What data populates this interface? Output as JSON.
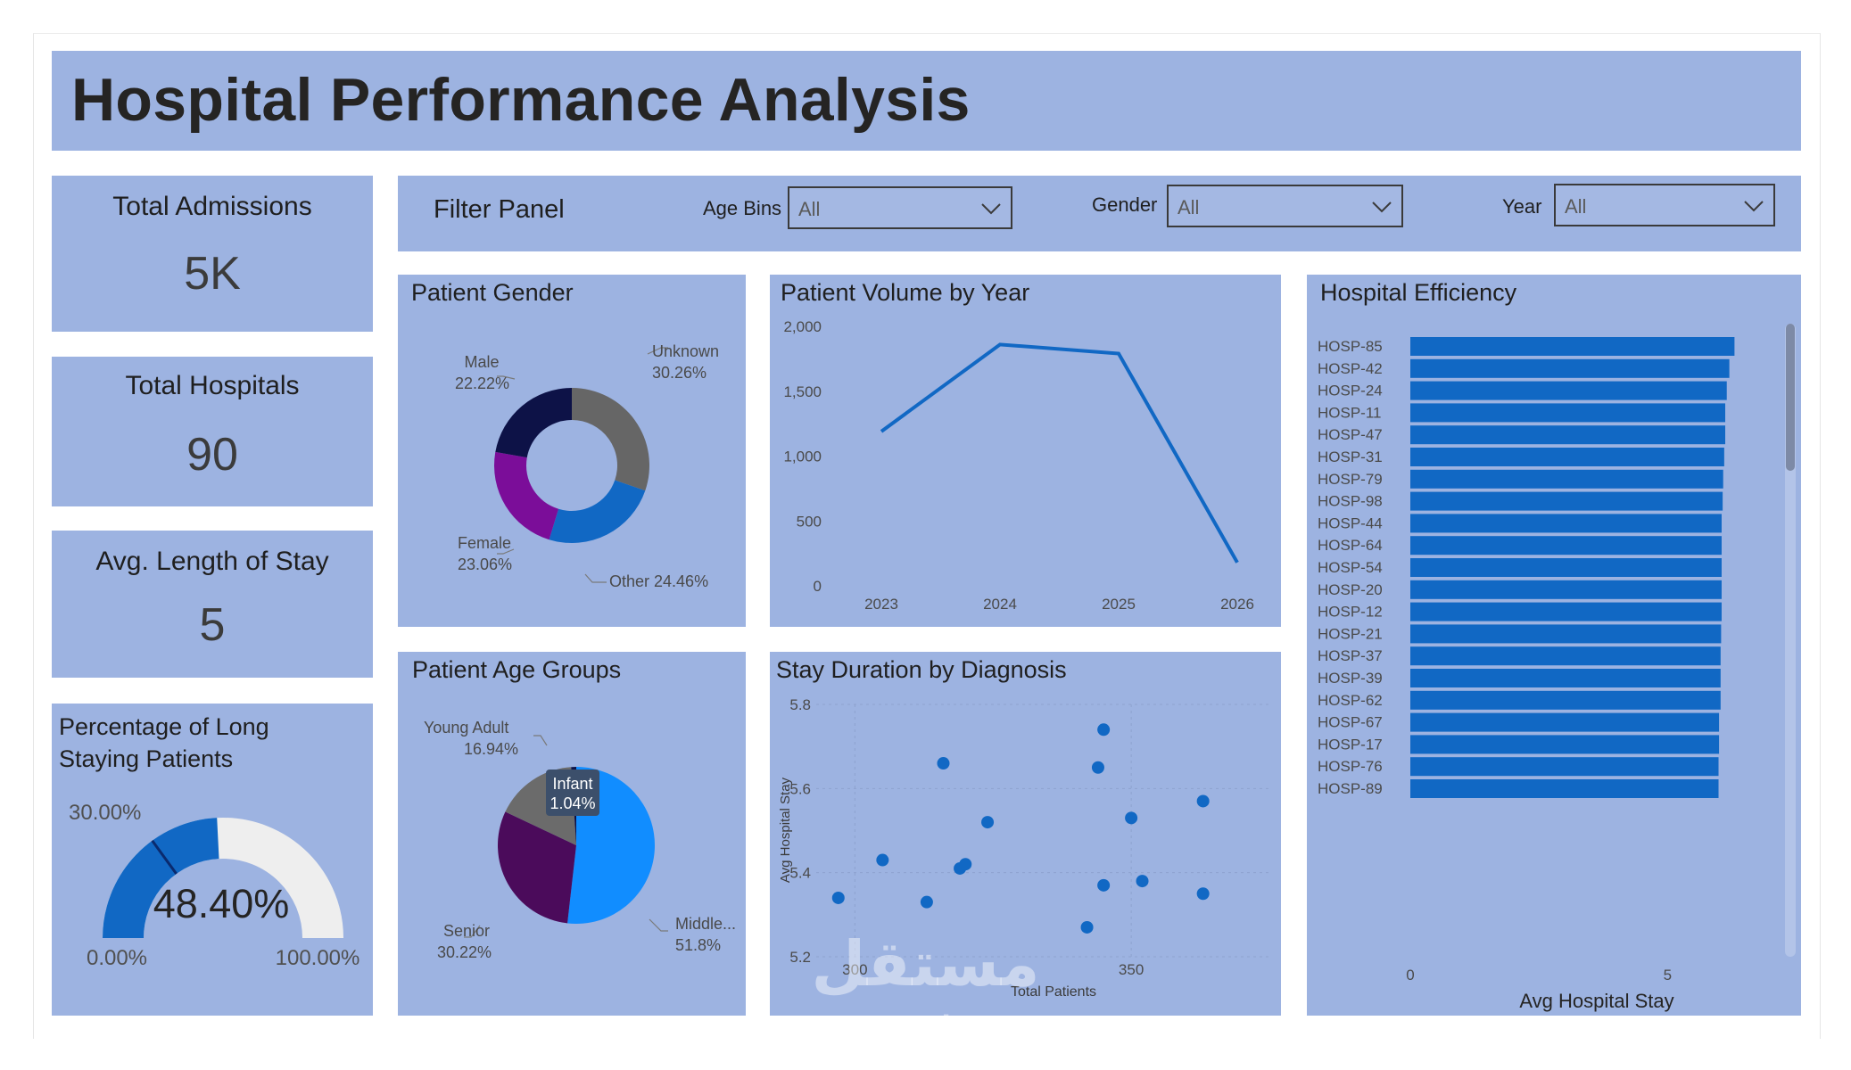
{
  "title": "Hospital Performance Analysis",
  "kpis": {
    "admissions": {
      "label": "Total Admissions",
      "value": "5K"
    },
    "hospitals": {
      "label": "Total Hospitals",
      "value": "90"
    },
    "avg_stay": {
      "label": "Avg. Length of Stay",
      "value": "5"
    }
  },
  "gauge": {
    "title_line1": "Percentage of Long",
    "title_line2": "Staying Patients",
    "value_label": "48.40%",
    "value": 48.4,
    "target_label": "30.00%",
    "target": 30.0,
    "min_label": "0.00%",
    "max_label": "100.00%",
    "fill_color": "#1168c4",
    "track_color": "#eeeeee",
    "target_color": "#0a2a6e"
  },
  "filters": {
    "title": "Filter Panel",
    "age_bins": {
      "label": "Age Bins",
      "value": "All"
    },
    "gender": {
      "label": "Gender",
      "value": "All"
    },
    "year": {
      "label": "Year",
      "value": "All"
    },
    "chevron_icon": "chevron-down-icon"
  },
  "gender_chart": {
    "title": "Patient Gender",
    "labels": {
      "unknown_name": "Unknown",
      "unknown_pct": "30.26%",
      "male_name": "Male",
      "male_pct": "22.22%",
      "female_name": "Female",
      "female_pct": "23.06%",
      "other": "Other 24.46%"
    },
    "chart_data": {
      "type": "pie",
      "donut": true,
      "categories": [
        "Unknown",
        "Other",
        "Female",
        "Male"
      ],
      "values": [
        30.26,
        24.46,
        23.06,
        22.22
      ],
      "colors": [
        "#666666",
        "#1168c4",
        "#7b0d99",
        "#0d1247"
      ]
    }
  },
  "volume_chart": {
    "title": "Patient Volume by Year",
    "yticks": [
      "2,000",
      "1,500",
      "1,000",
      "500",
      "0"
    ],
    "xticks": [
      "2023",
      "2024",
      "2025",
      "2026"
    ],
    "chart_data": {
      "type": "line",
      "x": [
        "2023",
        "2024",
        "2025",
        "2026"
      ],
      "values": [
        1190,
        1860,
        1790,
        180
      ],
      "ylim": [
        0,
        2000
      ],
      "color": "#1168c4"
    }
  },
  "efficiency_chart": {
    "title": "Hospital Efficiency",
    "xlabel": "Avg Hospital Stay",
    "xticks": [
      "0",
      "5"
    ],
    "chart_data": {
      "type": "bar",
      "orientation": "horizontal",
      "categories": [
        "HOSP-85",
        "HOSP-42",
        "HOSP-24",
        "HOSP-11",
        "HOSP-47",
        "HOSP-31",
        "HOSP-79",
        "HOSP-98",
        "HOSP-44",
        "HOSP-64",
        "HOSP-54",
        "HOSP-20",
        "HOSP-12",
        "HOSP-21",
        "HOSP-37",
        "HOSP-39",
        "HOSP-62",
        "HOSP-67",
        "HOSP-17",
        "HOSP-76",
        "HOSP-89"
      ],
      "values": [
        6.3,
        6.2,
        6.15,
        6.12,
        6.12,
        6.1,
        6.08,
        6.07,
        6.05,
        6.05,
        6.05,
        6.05,
        6.05,
        6.04,
        6.03,
        6.03,
        6.03,
        6.0,
        6.0,
        5.99,
        5.99
      ],
      "xlim": [
        0,
        6.9
      ],
      "xlabel": "Avg Hospital Stay",
      "color": "#1168c4"
    }
  },
  "age_chart": {
    "title": "Patient Age Groups",
    "labels": {
      "young_name": "Young Adult",
      "young_pct": "16.94%",
      "infant_name": "Infant",
      "infant_pct": "1.04%",
      "senior_name": "Senior",
      "senior_pct": "30.22%",
      "middle_name": "Middle...",
      "middle_pct": "51.8%"
    },
    "chart_data": {
      "type": "pie",
      "categories": [
        "Middle...",
        "Senior",
        "Young Adult",
        "Infant"
      ],
      "values": [
        51.8,
        30.22,
        16.94,
        1.04
      ],
      "colors": [
        "#118dff",
        "#4b0b5b",
        "#6b6b6b",
        "#0d1247"
      ]
    }
  },
  "stay_chart": {
    "title": "Stay Duration by Diagnosis",
    "ylabel": "Avg Hospital Stay",
    "xlabel": "Total Patients",
    "yticks": [
      "5.8",
      "5.6",
      "5.4",
      "5.2"
    ],
    "xticks": [
      "300",
      "350"
    ],
    "chart_data": {
      "type": "scatter",
      "xlim": [
        293,
        375
      ],
      "ylim": [
        5.2,
        5.8
      ],
      "color": "#1168c4",
      "points": [
        {
          "x": 297,
          "y": 5.34
        },
        {
          "x": 305,
          "y": 5.43
        },
        {
          "x": 313,
          "y": 5.33
        },
        {
          "x": 316,
          "y": 5.66
        },
        {
          "x": 319,
          "y": 5.41
        },
        {
          "x": 320,
          "y": 5.42
        },
        {
          "x": 324,
          "y": 5.52
        },
        {
          "x": 342,
          "y": 5.27
        },
        {
          "x": 344,
          "y": 5.65
        },
        {
          "x": 345,
          "y": 5.74
        },
        {
          "x": 345,
          "y": 5.37
        },
        {
          "x": 350,
          "y": 5.53
        },
        {
          "x": 352,
          "y": 5.38
        },
        {
          "x": 363,
          "y": 5.35
        },
        {
          "x": 363,
          "y": 5.57
        }
      ]
    }
  },
  "watermark": {
    "arabic": "مستقل",
    "latin": "mostaql.com"
  }
}
